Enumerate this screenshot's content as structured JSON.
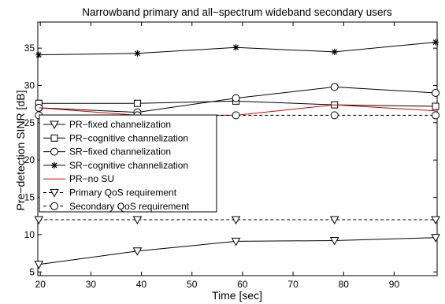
{
  "chart_data": {
    "type": "line",
    "title": "Narrowband primary and all−spectrum wideband secondary users",
    "xlabel": "Time [sec]",
    "ylabel": "Pre−detection SINR [dB]",
    "xlim": [
      19.5,
      98.5
    ],
    "ylim": [
      4.5,
      38.5
    ],
    "x_ticks": [
      20,
      30,
      40,
      50,
      60,
      70,
      80,
      90
    ],
    "y_ticks": [
      5,
      10,
      15,
      20,
      25,
      30,
      35
    ],
    "grid": false,
    "legend_position": "middle-left",
    "series": [
      {
        "name": "PR−fixed channelization",
        "marker": "triangle-down",
        "dash": "",
        "color": "#000000",
        "x": [
          19.7,
          39.2,
          58.7,
          78.2,
          98.2
        ],
        "y": [
          6.0,
          7.8,
          9.1,
          9.2,
          9.6
        ]
      },
      {
        "name": "PR−cognitive channelization",
        "marker": "square",
        "dash": "",
        "color": "#000000",
        "x": [
          19.7,
          39.2,
          58.7,
          78.2,
          98.2
        ],
        "y": [
          27.6,
          27.6,
          27.9,
          27.4,
          27.2
        ]
      },
      {
        "name": "SR−fixed channelization",
        "marker": "circle",
        "dash": "",
        "color": "#000000",
        "x": [
          19.7,
          39.2,
          58.7,
          78.2,
          98.2
        ],
        "y": [
          27.0,
          26.4,
          28.3,
          29.8,
          29.0
        ]
      },
      {
        "name": "SR−cognitive channelization",
        "marker": "star",
        "dash": "",
        "color": "#000000",
        "x": [
          19.7,
          39.2,
          58.7,
          78.2,
          98.2
        ],
        "y": [
          34.1,
          34.3,
          35.1,
          34.5,
          35.8
        ]
      },
      {
        "name": "PR−no SU",
        "marker": "none",
        "dash": "",
        "color": "#dd0000",
        "x": [
          19.7,
          39.2,
          58.7,
          78.2,
          98.2
        ],
        "y": [
          27.0,
          26.0,
          26.0,
          27.4,
          26.6
        ]
      },
      {
        "name": "Primary QoS requirement",
        "marker": "triangle-down",
        "dash": "4,3",
        "color": "#000000",
        "x": [
          19.7,
          39.2,
          58.7,
          78.2,
          98.2
        ],
        "y": [
          12,
          12,
          12,
          12,
          12
        ]
      },
      {
        "name": "Secondary QoS requirement",
        "marker": "circle",
        "dash": "4,3",
        "color": "#000000",
        "x": [
          19.7,
          39.2,
          58.7,
          78.2,
          98.2
        ],
        "y": [
          26,
          26,
          26,
          26,
          26
        ]
      }
    ]
  }
}
